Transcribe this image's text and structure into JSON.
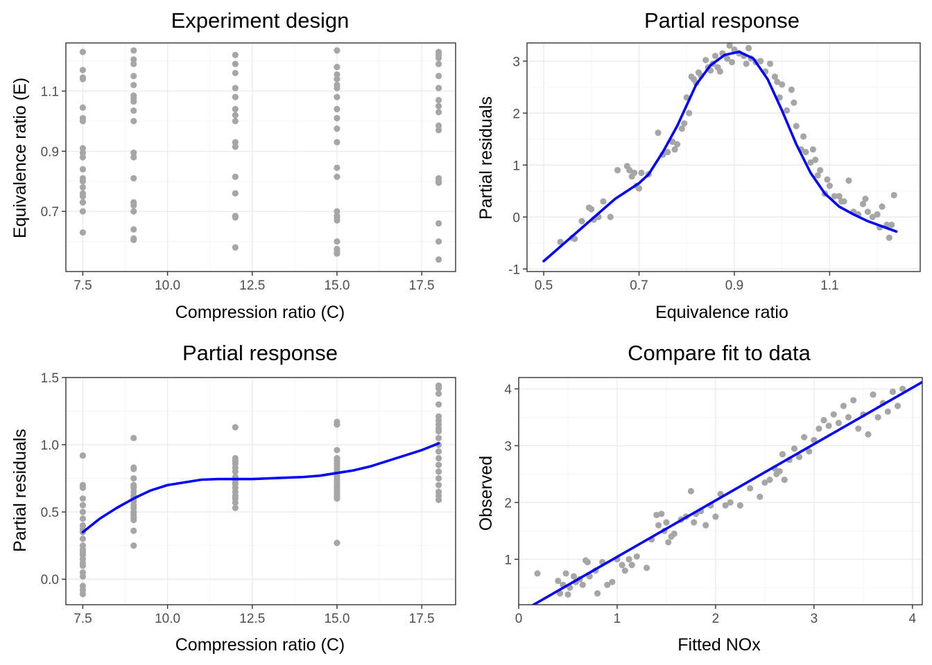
{
  "colors": {
    "points": "#a6a6a6",
    "line": "#0000ff",
    "grid_major": "#ebebeb",
    "grid_minor": "#f5f5f5",
    "frame": "#333333"
  },
  "chart_data": [
    {
      "type": "scatter",
      "title": "Experiment design",
      "xlabel": "Compression ratio (C)",
      "ylabel": "Equivalence ratio (E)",
      "xlim": [
        7.0,
        18.5
      ],
      "ylim": [
        0.5,
        1.26
      ],
      "xticks": [
        7.5,
        10.0,
        12.5,
        15.0,
        17.5
      ],
      "xtick_labels": [
        "7.5",
        "10.0",
        "12.5",
        "15.0",
        "17.5"
      ],
      "yticks": [
        0.7,
        0.9,
        1.1
      ],
      "ytick_labels": [
        "0.7",
        "0.9",
        "1.1"
      ],
      "grid": true,
      "points": {
        "x": [
          7.5,
          7.5,
          7.5,
          7.5,
          7.5,
          7.5,
          7.5,
          7.5,
          7.5,
          7.5,
          7.5,
          7.5,
          7.5,
          7.5,
          7.5,
          7.5,
          7.5,
          7.5,
          7.5,
          7.5,
          9.0,
          9.0,
          9.0,
          9.0,
          9.0,
          9.0,
          9.0,
          9.0,
          9.0,
          9.0,
          9.0,
          9.0,
          9.0,
          9.0,
          9.0,
          9.0,
          9.0,
          9.0,
          9.0,
          12.0,
          12.0,
          12.0,
          12.0,
          12.0,
          12.0,
          12.0,
          12.0,
          12.0,
          12.0,
          12.0,
          12.0,
          12.0,
          12.0,
          12.0,
          15.0,
          15.0,
          15.0,
          15.0,
          15.0,
          15.0,
          15.0,
          15.0,
          15.0,
          15.0,
          15.0,
          15.0,
          15.0,
          15.0,
          15.0,
          15.0,
          15.0,
          15.0,
          15.0,
          15.0,
          15.0,
          15.0,
          18.0,
          18.0,
          18.0,
          18.0,
          18.0,
          18.0,
          18.0,
          18.0,
          18.0,
          18.0,
          18.0,
          18.0,
          18.0,
          18.0,
          18.0,
          18.0,
          18.0
        ],
        "y": [
          1.23,
          1.17,
          1.145,
          1.14,
          1.045,
          1.01,
          1.0,
          0.91,
          0.895,
          0.88,
          0.84,
          0.81,
          0.8,
          0.78,
          0.76,
          0.75,
          0.73,
          0.73,
          0.7,
          0.63,
          1.235,
          1.205,
          1.19,
          1.15,
          1.12,
          1.085,
          1.075,
          1.065,
          1.035,
          1.0,
          0.895,
          0.88,
          0.81,
          0.73,
          0.72,
          0.7,
          0.64,
          0.61,
          0.605,
          1.22,
          1.19,
          1.16,
          1.11,
          1.08,
          1.04,
          1.02,
          1.0,
          0.93,
          0.915,
          0.815,
          0.76,
          0.685,
          0.68,
          0.58,
          1.235,
          1.18,
          1.155,
          1.14,
          1.12,
          1.11,
          1.08,
          1.04,
          1.01,
          0.975,
          0.93,
          0.845,
          0.815,
          0.7,
          0.685,
          0.68,
          0.67,
          0.6,
          0.575,
          0.565,
          0.565,
          0.56,
          1.23,
          1.22,
          1.21,
          1.19,
          1.15,
          1.11,
          1.07,
          1.05,
          1.03,
          0.985,
          0.97,
          0.81,
          0.8,
          0.795,
          0.66,
          0.6,
          0.54
        ]
      }
    },
    {
      "type": "scatter",
      "title": "Partial response",
      "xlabel": "Equivalence ratio",
      "ylabel": "Partial residuals",
      "xlim": [
        0.465,
        1.29
      ],
      "ylim": [
        -1.05,
        3.35
      ],
      "xticks": [
        0.5,
        0.7,
        0.9,
        1.1
      ],
      "xtick_labels": [
        "0.5",
        "0.7",
        "0.9",
        "1.1"
      ],
      "yticks": [
        -1,
        0,
        1,
        2,
        3
      ],
      "ytick_labels": [
        "-1",
        "0",
        "1",
        "2",
        "3"
      ],
      "grid": true,
      "points": {
        "x": [
          0.535,
          0.56,
          0.565,
          0.58,
          0.595,
          0.6,
          0.605,
          0.615,
          0.625,
          0.64,
          0.655,
          0.675,
          0.68,
          0.685,
          0.69,
          0.695,
          0.7,
          0.705,
          0.72,
          0.74,
          0.75,
          0.76,
          0.77,
          0.775,
          0.78,
          0.79,
          0.795,
          0.8,
          0.805,
          0.81,
          0.815,
          0.82,
          0.825,
          0.83,
          0.84,
          0.845,
          0.85,
          0.855,
          0.86,
          0.865,
          0.87,
          0.875,
          0.885,
          0.89,
          0.895,
          0.9,
          0.91,
          0.92,
          0.925,
          0.93,
          0.935,
          0.945,
          0.955,
          0.965,
          0.975,
          0.985,
          0.99,
          0.995,
          1.0,
          1.01,
          1.02,
          1.025,
          1.03,
          1.04,
          1.045,
          1.05,
          1.06,
          1.065,
          1.07,
          1.075,
          1.08,
          1.09,
          1.095,
          1.1,
          1.11,
          1.12,
          1.125,
          1.13,
          1.14,
          1.15,
          1.16,
          1.17,
          1.175,
          1.18,
          1.19,
          1.2,
          1.205,
          1.21,
          1.22,
          1.225,
          1.23,
          1.235
        ],
        "y": [
          -0.48,
          -0.4,
          -0.42,
          -0.08,
          0.18,
          0.15,
          -0.05,
          0.0,
          0.3,
          0.0,
          0.9,
          0.98,
          0.9,
          0.78,
          0.85,
          0.6,
          0.55,
          0.85,
          0.82,
          1.62,
          1.2,
          1.25,
          1.45,
          1.3,
          1.4,
          1.7,
          1.8,
          2.3,
          2.0,
          2.7,
          2.65,
          2.58,
          2.78,
          2.72,
          3.02,
          2.88,
          2.82,
          2.95,
          3.1,
          2.88,
          2.8,
          3.15,
          3.05,
          3.3,
          2.98,
          3.22,
          3.15,
          3.1,
          2.95,
          3.25,
          3.05,
          2.98,
          3.0,
          2.8,
          2.95,
          2.7,
          2.6,
          2.3,
          2.55,
          2.05,
          2.45,
          2.2,
          1.75,
          1.3,
          1.55,
          1.25,
          1.05,
          1.3,
          1.1,
          0.8,
          0.9,
          0.45,
          0.72,
          0.6,
          0.4,
          0.4,
          0.3,
          0.3,
          0.7,
          0.1,
          0.05,
          0.25,
          0.35,
          0.1,
          0.0,
          0.05,
          -0.2,
          0.2,
          -0.15,
          -0.4,
          -0.15,
          0.42
        ]
      },
      "line": {
        "x": [
          0.5,
          0.55,
          0.6,
          0.65,
          0.7,
          0.72,
          0.75,
          0.78,
          0.8,
          0.82,
          0.85,
          0.88,
          0.91,
          0.94,
          0.97,
          1.0,
          1.03,
          1.06,
          1.09,
          1.12,
          1.15,
          1.18,
          1.21,
          1.24
        ],
        "y": [
          -0.85,
          -0.45,
          -0.05,
          0.35,
          0.65,
          0.82,
          1.25,
          1.75,
          2.15,
          2.55,
          2.92,
          3.12,
          3.18,
          3.05,
          2.65,
          2.05,
          1.4,
          0.85,
          0.45,
          0.2,
          0.05,
          -0.08,
          -0.18,
          -0.28
        ]
      }
    },
    {
      "type": "scatter",
      "title": "Partial response",
      "xlabel": "Compression ratio (C)",
      "ylabel": "Partial residuals",
      "xlim": [
        7.0,
        18.5
      ],
      "ylim": [
        -0.19,
        1.5
      ],
      "xticks": [
        7.5,
        10.0,
        12.5,
        15.0,
        17.5
      ],
      "xtick_labels": [
        "7.5",
        "10.0",
        "12.5",
        "15.0",
        "17.5"
      ],
      "yticks": [
        0.0,
        0.5,
        1.0,
        1.5
      ],
      "ytick_labels": [
        "0.0",
        "0.5",
        "1.0",
        "1.5"
      ],
      "grid": true,
      "points": {
        "x": [
          7.5,
          7.5,
          7.5,
          7.5,
          7.5,
          7.5,
          7.5,
          7.5,
          7.5,
          7.5,
          7.5,
          7.5,
          7.5,
          7.5,
          7.5,
          7.5,
          7.5,
          7.5,
          7.5,
          7.5,
          7.5,
          7.5,
          7.5,
          9.0,
          9.0,
          9.0,
          9.0,
          9.0,
          9.0,
          9.0,
          9.0,
          9.0,
          9.0,
          9.0,
          9.0,
          9.0,
          9.0,
          9.0,
          9.0,
          9.0,
          9.0,
          12.0,
          12.0,
          12.0,
          12.0,
          12.0,
          12.0,
          12.0,
          12.0,
          12.0,
          12.0,
          12.0,
          12.0,
          12.0,
          12.0,
          12.0,
          12.0,
          15.0,
          15.0,
          15.0,
          15.0,
          15.0,
          15.0,
          15.0,
          15.0,
          15.0,
          15.0,
          15.0,
          15.0,
          15.0,
          15.0,
          15.0,
          15.0,
          15.0,
          15.0,
          15.0,
          15.0,
          18.0,
          18.0,
          18.0,
          18.0,
          18.0,
          18.0,
          18.0,
          18.0,
          18.0,
          18.0,
          18.0,
          18.0,
          18.0,
          18.0,
          18.0,
          18.0,
          18.0,
          18.0,
          18.0,
          18.0
        ],
        "y": [
          0.92,
          0.7,
          0.68,
          0.6,
          0.55,
          0.5,
          0.45,
          0.4,
          0.37,
          0.35,
          0.3,
          0.25,
          0.22,
          0.2,
          0.18,
          0.15,
          0.12,
          0.1,
          0.05,
          0.02,
          -0.05,
          -0.08,
          -0.11,
          1.05,
          0.83,
          0.82,
          0.75,
          0.7,
          0.68,
          0.65,
          0.62,
          0.6,
          0.58,
          0.55,
          0.53,
          0.5,
          0.48,
          0.46,
          0.44,
          0.36,
          0.25,
          1.13,
          0.9,
          0.88,
          0.86,
          0.83,
          0.8,
          0.76,
          0.74,
          0.73,
          0.71,
          0.68,
          0.65,
          0.62,
          0.6,
          0.57,
          0.53,
          1.17,
          1.15,
          0.96,
          0.9,
          0.88,
          0.86,
          0.84,
          0.82,
          0.8,
          0.78,
          0.76,
          0.74,
          0.72,
          0.7,
          0.68,
          0.66,
          0.64,
          0.62,
          0.6,
          0.27,
          1.44,
          1.42,
          1.38,
          1.3,
          1.21,
          1.18,
          1.15,
          1.12,
          1.1,
          1.05,
          1.0,
          0.95,
          0.9,
          0.85,
          0.8,
          0.75,
          0.7,
          0.65,
          0.62,
          0.59
        ]
      },
      "line": {
        "x": [
          7.5,
          8.0,
          8.5,
          9.0,
          9.5,
          10.0,
          10.5,
          11.0,
          11.5,
          12.0,
          12.5,
          13.0,
          13.5,
          14.0,
          14.5,
          15.0,
          15.5,
          16.0,
          16.5,
          17.0,
          17.5,
          18.0
        ],
        "y": [
          0.35,
          0.45,
          0.53,
          0.6,
          0.66,
          0.7,
          0.72,
          0.74,
          0.745,
          0.745,
          0.745,
          0.75,
          0.755,
          0.76,
          0.77,
          0.79,
          0.81,
          0.84,
          0.88,
          0.92,
          0.96,
          1.01
        ]
      }
    },
    {
      "type": "scatter",
      "title": "Compare fit to data",
      "xlabel": "Fitted NOx",
      "ylabel": "Observed",
      "xlim": [
        0.0,
        4.1
      ],
      "ylim": [
        0.2,
        4.2
      ],
      "xticks": [
        0,
        1,
        2,
        3,
        4
      ],
      "xtick_labels": [
        "0",
        "1",
        "2",
        "3",
        "4"
      ],
      "yticks": [
        1,
        2,
        3,
        4
      ],
      "ytick_labels": [
        "1",
        "2",
        "3",
        "4"
      ],
      "grid": true,
      "points": {
        "x": [
          0.19,
          0.4,
          0.42,
          0.45,
          0.48,
          0.5,
          0.52,
          0.56,
          0.58,
          0.62,
          0.65,
          0.68,
          0.7,
          0.72,
          0.78,
          0.8,
          0.85,
          0.9,
          0.95,
          1.0,
          1.05,
          1.08,
          1.12,
          1.15,
          1.2,
          1.3,
          1.35,
          1.4,
          1.42,
          1.45,
          1.48,
          1.5,
          1.52,
          1.55,
          1.58,
          1.65,
          1.7,
          1.75,
          1.78,
          1.8,
          1.85,
          1.9,
          1.95,
          2.0,
          2.05,
          2.1,
          2.15,
          2.25,
          2.35,
          2.45,
          2.5,
          2.55,
          2.6,
          2.62,
          2.65,
          2.68,
          2.7,
          2.75,
          2.8,
          2.85,
          2.9,
          2.95,
          3.0,
          3.05,
          3.1,
          3.15,
          3.2,
          3.25,
          3.3,
          3.35,
          3.4,
          3.45,
          3.5,
          3.55,
          3.6,
          3.65,
          3.7,
          3.75,
          3.8,
          3.85,
          3.9
        ],
        "y": [
          0.75,
          0.62,
          0.4,
          0.55,
          0.75,
          0.38,
          0.5,
          0.7,
          0.6,
          0.65,
          0.55,
          0.98,
          0.95,
          0.7,
          0.8,
          0.4,
          0.95,
          0.55,
          0.6,
          1.0,
          0.9,
          0.8,
          1.0,
          0.9,
          1.05,
          0.85,
          1.35,
          1.78,
          1.6,
          1.8,
          1.5,
          1.65,
          1.3,
          1.4,
          1.45,
          1.7,
          1.75,
          2.2,
          1.65,
          1.8,
          1.85,
          1.6,
          1.95,
          1.75,
          2.15,
          1.95,
          2.0,
          1.95,
          2.25,
          2.1,
          2.35,
          2.4,
          2.6,
          2.5,
          2.55,
          2.85,
          2.4,
          2.75,
          2.95,
          2.8,
          3.15,
          2.9,
          3.1,
          3.3,
          3.45,
          3.35,
          3.55,
          3.4,
          3.7,
          3.5,
          3.8,
          3.3,
          3.55,
          3.2,
          3.9,
          3.5,
          3.75,
          3.6,
          3.95,
          3.7,
          4.0
        ]
      },
      "line": {
        "x": [
          0.0,
          4.1
        ],
        "y": [
          0.05,
          4.12
        ]
      }
    }
  ]
}
